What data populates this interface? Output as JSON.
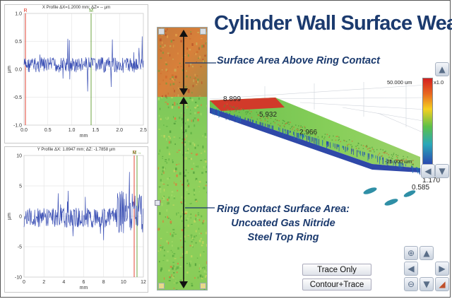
{
  "title": "Cylinder Wall Surface Wear",
  "callouts": {
    "above": "Surface Area Above Ring Contact",
    "contact_line1": "Ring Contact Surface Area:",
    "contact_line2": "Uncoated Gas Nitride",
    "contact_line3": "Steel Top Ring"
  },
  "x_profile": {
    "title": "X Profile  ΔX=1.2000 mm; ΔZ= -- µm",
    "ylabel": "µm",
    "xlabel": "mm",
    "y_ticks": [
      "1.0",
      "0.5",
      "0.0",
      "-0.5",
      "-1.0"
    ],
    "x_ticks": [
      "0.0",
      "0.5",
      "1.0",
      "1.5",
      "2.0",
      "2.5"
    ],
    "marker_r": "R",
    "marker_m": "M"
  },
  "y_profile": {
    "title": "Y Profile  ΔX: 1.8947 mm; ΔZ: -1.7858 µm",
    "ylabel": "µm",
    "xlabel": "mm",
    "y_ticks": [
      "10",
      "5",
      "0",
      "-5",
      "-10"
    ],
    "x_ticks": [
      "0",
      "2",
      "4",
      "6",
      "8",
      "10",
      "12"
    ],
    "marker_r": "R",
    "marker_m": "M→"
  },
  "surface": {
    "scale_top": "50.000 um",
    "zoom": "x1.0",
    "scale_bottom": "-25.000 um",
    "axis_labels": [
      "8.899",
      "5.932",
      "2.966",
      "1.170",
      "0.585"
    ]
  },
  "buttons": {
    "trace_only": "Trace Only",
    "contour_trace": "Contour+Trace"
  },
  "icons": {
    "zoom_in": "magnifier-plus-icon",
    "zoom_out": "magnifier-minus-icon",
    "pan_up": "arrow-up-icon",
    "pan_down": "arrow-down-icon",
    "pan_left": "arrow-left-icon",
    "pan_right": "arrow-right-icon",
    "reset": "home-icon"
  },
  "colors": {
    "title": "#1b3a6e",
    "trace": "#3a4fb4",
    "red_marker": "#e03020",
    "green_marker": "#5c9a2c"
  }
}
